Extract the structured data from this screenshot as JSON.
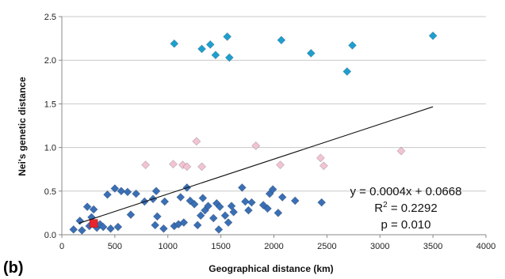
{
  "chart_data": {
    "type": "scatter",
    "panel_label": "(b)",
    "xlabel": "Geographical distance (km)",
    "ylabel": "Nei's genetic distance",
    "xlim": [
      0,
      4000
    ],
    "ylim": [
      0,
      2.5
    ],
    "x_ticks": [
      "0",
      "500",
      "1000",
      "1500",
      "2000",
      "2500",
      "3000",
      "3500",
      "4000"
    ],
    "y_ticks": [
      "0.0",
      "0.5",
      "1.0",
      "1.5",
      "2.0",
      "2.5"
    ],
    "grid": "horizontal",
    "annotations": {
      "equation": "y = 0.0004x + 0.0668",
      "r2_prefix": "R",
      "r2_sup": "2",
      "r2_value": " = 0.2292",
      "pvalue": "p = 0.010"
    },
    "trendline": {
      "slope": 0.0004,
      "intercept": 0.0668,
      "x_range": [
        160,
        3500
      ]
    },
    "series": [
      {
        "color": "#1E9FD0",
        "marker": "diamond",
        "points": [
          [
            1060,
            2.19
          ],
          [
            1320,
            2.13
          ],
          [
            1400,
            2.18
          ],
          [
            1450,
            2.06
          ],
          [
            1560,
            2.27
          ],
          [
            1580,
            2.03
          ],
          [
            2070,
            2.23
          ],
          [
            2350,
            2.08
          ],
          [
            2690,
            1.87
          ],
          [
            2740,
            2.17
          ],
          [
            3500,
            2.28
          ]
        ]
      },
      {
        "color": "#F2C4D2",
        "marker": "diamond",
        "points": [
          [
            790,
            0.8
          ],
          [
            1050,
            0.81
          ],
          [
            1140,
            0.8
          ],
          [
            1180,
            0.78
          ],
          [
            1270,
            1.07
          ],
          [
            1320,
            0.78
          ],
          [
            1830,
            1.02
          ],
          [
            2060,
            0.8
          ],
          [
            2440,
            0.88
          ],
          [
            2470,
            0.79
          ],
          [
            3200,
            0.96
          ]
        ]
      },
      {
        "color": "#3A6FB5",
        "marker": "diamond",
        "points": [
          [
            110,
            0.06
          ],
          [
            170,
            0.16
          ],
          [
            190,
            0.05
          ],
          [
            240,
            0.32
          ],
          [
            260,
            0.1
          ],
          [
            280,
            0.2
          ],
          [
            300,
            0.29
          ],
          [
            330,
            0.08
          ],
          [
            360,
            0.12
          ],
          [
            390,
            0.09
          ],
          [
            430,
            0.46
          ],
          [
            460,
            0.07
          ],
          [
            500,
            0.53
          ],
          [
            530,
            0.09
          ],
          [
            560,
            0.5
          ],
          [
            620,
            0.49
          ],
          [
            650,
            0.23
          ],
          [
            700,
            0.47
          ],
          [
            860,
            0.41
          ],
          [
            880,
            0.11
          ],
          [
            890,
            0.5
          ],
          [
            900,
            0.21
          ],
          [
            970,
            0.38
          ],
          [
            1060,
            0.1
          ],
          [
            1100,
            0.12
          ],
          [
            1120,
            0.43
          ],
          [
            1150,
            0.14
          ],
          [
            1180,
            0.54
          ],
          [
            1210,
            0.39
          ],
          [
            1250,
            0.35
          ],
          [
            1280,
            0.11
          ],
          [
            1310,
            0.22
          ],
          [
            1330,
            0.42
          ],
          [
            1350,
            0.28
          ],
          [
            1380,
            0.33
          ],
          [
            1430,
            0.19
          ],
          [
            1460,
            0.36
          ],
          [
            1490,
            0.32
          ],
          [
            1540,
            0.22
          ],
          [
            1570,
            0.14
          ],
          [
            1600,
            0.33
          ],
          [
            1620,
            0.26
          ],
          [
            1700,
            0.54
          ],
          [
            1730,
            0.38
          ],
          [
            1760,
            0.28
          ],
          [
            1790,
            0.37
          ],
          [
            1900,
            0.34
          ],
          [
            1940,
            0.3
          ],
          [
            1960,
            0.47
          ],
          [
            1990,
            0.52
          ],
          [
            2040,
            0.25
          ],
          [
            2080,
            0.43
          ],
          [
            2200,
            0.39
          ],
          [
            2450,
            0.37
          ],
          [
            1480,
            0.06
          ],
          [
            780,
            0.38
          ],
          [
            960,
            0.07
          ]
        ]
      },
      {
        "color": "#E8242C",
        "marker": "square",
        "points": [
          [
            300,
            0.13
          ]
        ]
      }
    ]
  }
}
